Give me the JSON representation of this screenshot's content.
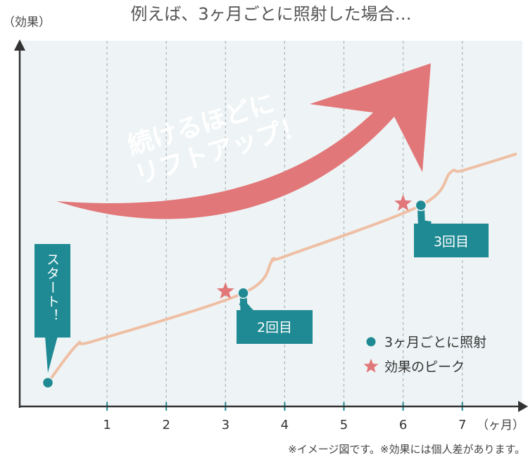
{
  "chart_data": {
    "type": "line",
    "title": "例えば、3ヶ月ごとに照射した場合…",
    "ylabel": "（効果）",
    "xlabel": "（ヶ月）",
    "x_ticks": [
      "1",
      "2",
      "3",
      "4",
      "5",
      "6",
      "7"
    ],
    "xlim": [
      0,
      7.9
    ],
    "ylim": [
      0,
      1
    ],
    "grid": "vertical dashed",
    "legend_position": "bottom-right",
    "series": [
      {
        "name": "",
        "color": "#efbfa5",
        "points": [
          {
            "x": 0.0,
            "y": 0.065
          },
          {
            "x": 0.5,
            "y": 0.17
          },
          {
            "x": 0.8,
            "y": 0.18
          },
          {
            "x": 3.3,
            "y": 0.31
          },
          {
            "x": 3.8,
            "y": 0.4
          },
          {
            "x": 4.0,
            "y": 0.41
          },
          {
            "x": 6.3,
            "y": 0.55
          },
          {
            "x": 6.8,
            "y": 0.64
          },
          {
            "x": 7.0,
            "y": 0.645
          },
          {
            "x": 7.9,
            "y": 0.69
          }
        ]
      }
    ],
    "treatment_points": [
      {
        "x": 0.0,
        "y": 0.065
      },
      {
        "x": 3.3,
        "y": 0.31
      },
      {
        "x": 6.3,
        "y": 0.55
      }
    ],
    "peak_points": [
      {
        "x": 3.0,
        "y": 0.315
      },
      {
        "x": 6.0,
        "y": 0.555
      }
    ],
    "callouts": [
      {
        "text": "スタート！",
        "anchor_index": 0
      },
      {
        "text": "2回目",
        "anchor_index": 1
      },
      {
        "text": "3回目",
        "anchor_index": 2
      }
    ],
    "legend": [
      {
        "label": "3ヶ月ごとに照射",
        "marker": "circle",
        "color": "#1f8a93"
      },
      {
        "label": "効果のピーク",
        "marker": "star",
        "color": "#e2777a"
      }
    ],
    "arrow_text": [
      "続けるほどに",
      "リフトアップ！"
    ],
    "arrow_color": "#e2777a",
    "footnote": "※イメージ図です。※効果には個人差があります。",
    "colors": {
      "plot_bg": "#eef4f5",
      "axis": "#333333",
      "grid": "#aab5bb",
      "tick_mark": "#1f8a93",
      "callout_bg": "#1f8a93",
      "callout_text": "#ffffff",
      "marker": "#1f8a93",
      "star": "#e2777a"
    }
  }
}
